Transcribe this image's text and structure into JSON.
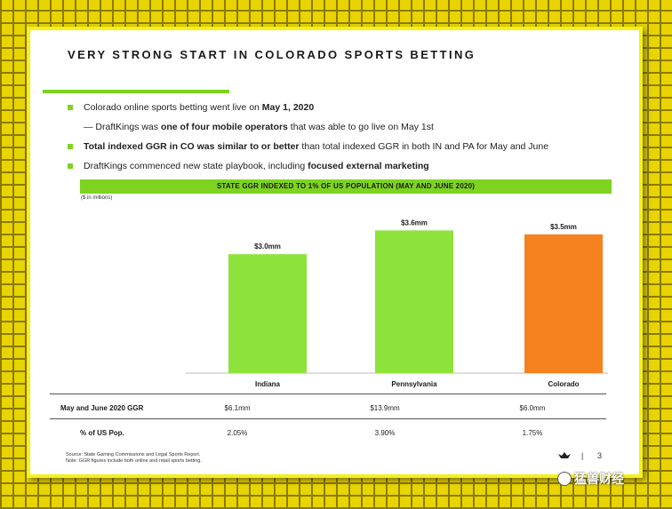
{
  "title": "VERY STRONG START IN COLORADO SPORTS BETTING",
  "bullets": [
    {
      "pre": "Colorado online sports betting went live on ",
      "bold": "May 1, 2020",
      "post": ""
    },
    {
      "pre": "— DraftKings was ",
      "bold": "one of four mobile operators",
      "post": " that was able to go live on May 1st"
    },
    {
      "pre": "",
      "bold": "Total indexed GGR in CO was similar to or better",
      "post": " than total indexed GGR in both IN and PA for May and June"
    },
    {
      "pre": "DraftKings commenced new state playbook, including ",
      "bold": "focused external marketing",
      "post": ""
    }
  ],
  "chart_header": "STATE GGR INDEXED TO 1% OF US POPULATION (MAY AND JUNE 2020)",
  "units": "($ in millions)",
  "chart_data": {
    "type": "bar",
    "title": "STATE GGR INDEXED TO 1% OF US POPULATION (MAY AND JUNE 2020)",
    "ylabel": "($ in millions)",
    "categories": [
      "Indiana",
      "Pennsylvania",
      "Colorado"
    ],
    "values": [
      3.0,
      3.6,
      3.5
    ],
    "data_labels": [
      "$3.0mm",
      "$3.6mm",
      "$3.5mm"
    ],
    "colors": [
      "#8de33c",
      "#8de33c",
      "#f5821f"
    ],
    "ylim": [
      0,
      3.9
    ],
    "grid": false,
    "legend": "none"
  },
  "table": {
    "rows": [
      {
        "label": "May and June 2020 GGR",
        "values": [
          "$6.1mm",
          "$13.9mm",
          "$6.0mm"
        ]
      },
      {
        "label": "% of US Pop.",
        "values": [
          "2.05%",
          "3.90%",
          "1.75%"
        ]
      }
    ]
  },
  "source_lines": [
    "Source: State Gaming Commissions and Legal Sports Report.",
    "Note: GGR figures include both online and retail sports betting."
  ],
  "footer": {
    "separator": "|",
    "page": "3"
  },
  "watermark": "猛兽财经"
}
